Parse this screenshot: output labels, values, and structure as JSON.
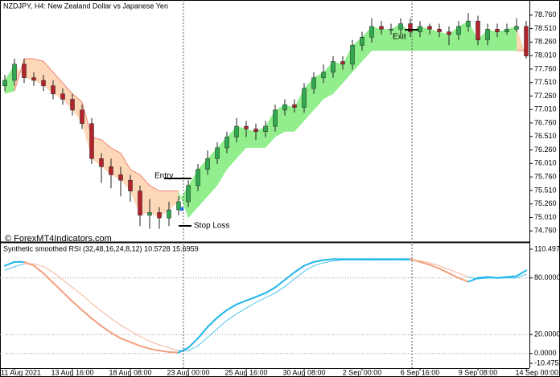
{
  "chart_data": [
    {
      "type": "candlestick",
      "title": "NZDJPY, H4:  New Zealand Dollar vs Japanese Yen",
      "watermark": "© ForexMT4Indicators.com",
      "annotations": {
        "entry": "Entry",
        "stop_loss": "Stop Loss",
        "exit": "Exit"
      },
      "open": [
        77.45,
        77.55,
        77.85,
        77.6,
        77.55,
        77.45,
        77.3,
        77.2,
        77.0,
        76.75,
        76.1,
        75.95,
        75.8,
        75.7,
        75.5,
        75.05,
        75.1,
        75.0,
        75.15,
        75.3,
        75.6,
        75.9,
        76.1,
        76.3,
        76.5,
        76.7,
        76.65,
        76.6,
        76.7,
        77.0,
        77.1,
        77.05,
        77.4,
        77.6,
        77.7,
        77.9,
        77.85,
        78.2,
        78.35,
        78.55,
        78.5,
        78.5,
        78.6,
        78.45,
        78.55,
        78.5,
        78.45,
        78.4,
        78.55,
        78.65,
        78.3,
        78.5,
        78.45,
        78.5,
        78.55
      ],
      "high": [
        77.65,
        77.95,
        77.95,
        77.7,
        77.65,
        77.55,
        77.4,
        77.3,
        77.1,
        76.85,
        76.2,
        76.1,
        75.95,
        75.8,
        75.6,
        75.35,
        75.2,
        75.3,
        75.4,
        75.7,
        76.0,
        76.25,
        76.4,
        76.6,
        76.85,
        76.8,
        76.75,
        76.8,
        77.1,
        77.2,
        77.2,
        77.5,
        77.7,
        77.85,
        78.0,
        78.0,
        78.3,
        78.45,
        78.7,
        78.65,
        78.6,
        78.7,
        78.7,
        78.65,
        78.6,
        78.6,
        78.55,
        78.65,
        78.8,
        78.75,
        78.6,
        78.6,
        78.6,
        78.7,
        78.65
      ],
      "low": [
        77.35,
        77.45,
        77.5,
        77.45,
        77.35,
        77.2,
        77.1,
        76.9,
        76.65,
        76.0,
        75.65,
        75.55,
        75.4,
        75.3,
        74.85,
        74.8,
        74.8,
        74.85,
        75.05,
        75.2,
        75.5,
        75.8,
        76.0,
        76.2,
        76.4,
        76.5,
        76.45,
        76.5,
        76.6,
        76.9,
        76.95,
        76.95,
        77.3,
        77.5,
        77.6,
        77.75,
        77.75,
        78.1,
        78.25,
        78.4,
        78.4,
        78.4,
        78.35,
        78.35,
        78.4,
        78.35,
        78.2,
        78.3,
        78.45,
        78.2,
        78.2,
        78.35,
        78.4,
        78.45,
        77.95
      ],
      "close": [
        77.55,
        77.85,
        77.6,
        77.55,
        77.45,
        77.3,
        77.2,
        77.0,
        76.75,
        76.1,
        75.95,
        75.8,
        75.7,
        75.5,
        75.05,
        75.1,
        75.0,
        75.15,
        75.3,
        75.6,
        75.9,
        76.1,
        76.3,
        76.5,
        76.7,
        76.65,
        76.6,
        76.7,
        77.0,
        77.1,
        77.05,
        77.4,
        77.6,
        77.7,
        77.9,
        77.85,
        78.2,
        78.35,
        78.55,
        78.5,
        78.5,
        78.6,
        78.45,
        78.55,
        78.5,
        78.45,
        78.4,
        78.55,
        78.65,
        78.3,
        78.5,
        78.45,
        78.5,
        78.55,
        78.0
      ],
      "band": [
        77.3,
        77.35,
        77.95,
        77.95,
        77.9,
        77.7,
        77.5,
        77.3,
        77.15,
        76.5,
        76.45,
        76.3,
        76.2,
        75.9,
        75.8,
        75.6,
        75.5,
        75.5,
        75.5,
        75.0,
        75.2,
        75.4,
        75.6,
        75.9,
        76.1,
        76.3,
        76.3,
        76.3,
        76.5,
        76.6,
        76.6,
        76.8,
        77.0,
        77.2,
        77.3,
        77.5,
        77.7,
        77.9,
        78.1,
        78.1,
        78.1,
        78.1,
        78.1,
        78.1,
        78.1,
        78.1,
        78.1,
        78.1,
        78.1,
        78.1,
        78.1,
        78.1,
        78.1,
        78.1,
        78.1
      ],
      "up_color": "#2fa84f",
      "down_color": "#b3232c",
      "band_up_color": "#92ee8c",
      "band_down_color": "#fdd8b8",
      "band_edge_color": "#ef8270",
      "ylim": [
        74.57,
        79.01
      ],
      "yticks": [
        {
          "value": 74.76,
          "label": "74.760"
        },
        {
          "value": 75.01,
          "label": "75.010"
        },
        {
          "value": 75.26,
          "label": "75.260"
        },
        {
          "value": 75.51,
          "label": "75.510"
        },
        {
          "value": 75.76,
          "label": "75.760"
        },
        {
          "value": 76.01,
          "label": "76.010"
        },
        {
          "value": 76.26,
          "label": "76.260"
        },
        {
          "value": 76.51,
          "label": "76.510"
        },
        {
          "value": 76.76,
          "label": "76.760"
        },
        {
          "value": 77.01,
          "label": "77.010"
        },
        {
          "value": 77.26,
          "label": "77.260"
        },
        {
          "value": 77.51,
          "label": "77.510"
        },
        {
          "value": 77.76,
          "label": "77.760"
        },
        {
          "value": 78.01,
          "label": "78.010"
        },
        {
          "value": 78.26,
          "label": "78.260"
        },
        {
          "value": 78.51,
          "label": "78.510"
        },
        {
          "value": 78.76,
          "label": "78.760"
        }
      ]
    },
    {
      "type": "line",
      "title": "Synthetic smoothed RSI (32,48,16,24,8,12) 10.5728 15.6959",
      "categories": [
        null,
        "11 Aug 2021",
        null,
        null,
        null,
        null,
        null,
        "13 Aug 16:00",
        null,
        null,
        null,
        null,
        null,
        "18 Aug 08:00",
        null,
        null,
        null,
        null,
        null,
        "23 Aug 00:00",
        null,
        null,
        null,
        null,
        null,
        "25 Aug 16:00",
        null,
        null,
        null,
        null,
        null,
        "30 Aug 08:00",
        null,
        null,
        null,
        null,
        null,
        "2 Sep 00:00",
        null,
        null,
        null,
        null,
        null,
        "6 Sep 16:00",
        null,
        null,
        null,
        null,
        null,
        "9 Sep 08:00",
        null,
        null,
        null,
        null,
        "14 Sep 00:00"
      ],
      "series": [
        {
          "values": [
            93,
            97,
            97,
            93,
            85,
            75,
            65,
            55,
            46,
            37,
            29,
            22,
            16,
            12,
            8,
            5,
            3,
            1.5,
            1,
            6,
            16,
            28,
            38,
            46,
            52,
            56,
            60,
            64,
            70,
            78,
            86,
            93,
            97,
            99,
            100,
            100,
            100,
            100,
            100,
            100,
            100,
            100,
            100,
            97,
            94,
            90,
            85,
            80,
            76,
            80,
            81,
            80,
            81,
            82,
            88
          ],
          "width": 2
        },
        {
          "values": [
            88,
            92,
            95,
            95,
            92,
            86,
            78,
            70,
            62,
            53,
            45,
            37,
            30,
            24,
            18,
            13,
            9,
            6,
            3,
            3,
            8,
            17,
            26,
            35,
            42,
            48,
            54,
            59,
            64,
            71,
            79,
            87,
            93,
            96,
            98,
            99,
            99,
            99,
            99,
            99,
            99,
            99,
            99,
            98,
            96,
            93,
            89,
            85,
            81,
            79,
            80,
            80,
            80,
            80,
            84
          ],
          "width": 0.8
        }
      ],
      "rising_color": "#1fb6ea",
      "falling_color": "#f3a07e",
      "ylim": [
        -10.4751,
        110.4976
      ],
      "yticks": [
        -10.4751,
        {
          "value": 0,
          "label": "0.0000"
        },
        {
          "value": 20,
          "label": "20.0000"
        },
        {
          "value": 80,
          "label": "80.0000"
        },
        110.4976
      ],
      "grid": true
    }
  ]
}
